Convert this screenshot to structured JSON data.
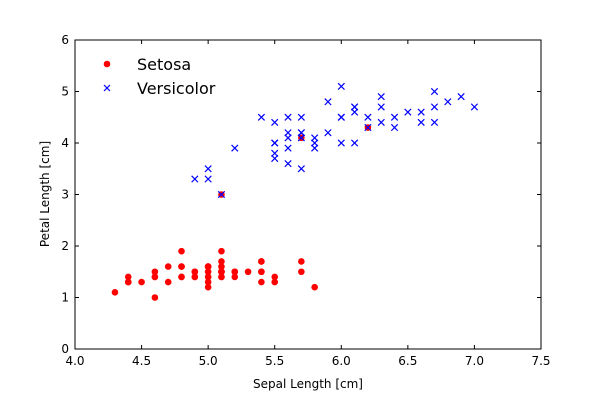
{
  "chart_data": {
    "type": "scatter",
    "title": "",
    "xlabel": "Sepal Length [cm]",
    "ylabel": "Petal Length [cm]",
    "xlim": [
      4.0,
      7.5
    ],
    "ylim": [
      0,
      6
    ],
    "xticks": [
      "4.0",
      "4.5",
      "5.0",
      "5.5",
      "6.0",
      "6.5",
      "7.0",
      "7.5"
    ],
    "yticks": [
      "0",
      "1",
      "2",
      "3",
      "4",
      "5",
      "6"
    ],
    "grid": false,
    "legend_position": "top-left",
    "series": [
      {
        "name": "Setosa",
        "marker": "circle",
        "color": "#ff0000",
        "points": [
          [
            5.1,
            1.4
          ],
          [
            4.9,
            1.4
          ],
          [
            4.7,
            1.3
          ],
          [
            4.6,
            1.5
          ],
          [
            5.0,
            1.4
          ],
          [
            5.4,
            1.7
          ],
          [
            4.6,
            1.4
          ],
          [
            5.0,
            1.5
          ],
          [
            4.4,
            1.4
          ],
          [
            4.9,
            1.5
          ],
          [
            5.4,
            1.5
          ],
          [
            4.8,
            1.6
          ],
          [
            4.8,
            1.4
          ],
          [
            4.3,
            1.1
          ],
          [
            5.8,
            1.2
          ],
          [
            5.7,
            1.5
          ],
          [
            5.4,
            1.3
          ],
          [
            5.1,
            1.4
          ],
          [
            5.7,
            1.7
          ],
          [
            5.1,
            1.5
          ],
          [
            5.4,
            1.7
          ],
          [
            5.1,
            1.5
          ],
          [
            4.6,
            1.0
          ],
          [
            5.1,
            1.7
          ],
          [
            4.8,
            1.9
          ],
          [
            5.0,
            1.6
          ],
          [
            5.0,
            1.6
          ],
          [
            5.2,
            1.5
          ],
          [
            5.2,
            1.4
          ],
          [
            4.7,
            1.6
          ],
          [
            4.8,
            1.6
          ],
          [
            5.4,
            1.5
          ],
          [
            5.2,
            1.5
          ],
          [
            5.5,
            1.4
          ],
          [
            4.9,
            1.5
          ],
          [
            5.0,
            1.2
          ],
          [
            5.5,
            1.3
          ],
          [
            4.9,
            1.4
          ],
          [
            4.4,
            1.3
          ],
          [
            5.1,
            1.5
          ],
          [
            5.0,
            1.3
          ],
          [
            4.5,
            1.3
          ],
          [
            4.4,
            1.3
          ],
          [
            5.0,
            1.6
          ],
          [
            5.1,
            1.9
          ],
          [
            4.8,
            1.4
          ],
          [
            5.1,
            1.6
          ],
          [
            4.6,
            1.4
          ],
          [
            5.3,
            1.5
          ],
          [
            5.0,
            1.4
          ],
          [
            5.1,
            3.0
          ],
          [
            5.7,
            4.1
          ],
          [
            6.2,
            4.3
          ]
        ]
      },
      {
        "name": "Versicolor",
        "marker": "x",
        "color": "#0000ff",
        "points": [
          [
            7.0,
            4.7
          ],
          [
            6.4,
            4.5
          ],
          [
            6.9,
            4.9
          ],
          [
            5.5,
            4.0
          ],
          [
            6.5,
            4.6
          ],
          [
            5.7,
            4.5
          ],
          [
            6.3,
            4.7
          ],
          [
            4.9,
            3.3
          ],
          [
            6.6,
            4.6
          ],
          [
            5.2,
            3.9
          ],
          [
            5.0,
            3.5
          ],
          [
            5.9,
            4.2
          ],
          [
            6.0,
            4.0
          ],
          [
            6.1,
            4.7
          ],
          [
            5.6,
            3.6
          ],
          [
            6.7,
            4.4
          ],
          [
            5.6,
            4.5
          ],
          [
            5.8,
            4.1
          ],
          [
            6.2,
            4.5
          ],
          [
            5.6,
            3.9
          ],
          [
            5.9,
            4.8
          ],
          [
            6.1,
            4.0
          ],
          [
            6.3,
            4.9
          ],
          [
            6.1,
            4.7
          ],
          [
            6.4,
            4.3
          ],
          [
            6.6,
            4.4
          ],
          [
            6.8,
            4.8
          ],
          [
            6.7,
            5.0
          ],
          [
            6.0,
            4.5
          ],
          [
            5.7,
            3.5
          ],
          [
            5.5,
            3.8
          ],
          [
            5.5,
            3.7
          ],
          [
            5.8,
            3.9
          ],
          [
            6.0,
            5.1
          ],
          [
            5.4,
            4.5
          ],
          [
            6.0,
            4.5
          ],
          [
            6.7,
            4.7
          ],
          [
            6.3,
            4.4
          ],
          [
            5.6,
            4.1
          ],
          [
            5.5,
            4.0
          ],
          [
            5.5,
            4.4
          ],
          [
            6.1,
            4.6
          ],
          [
            5.8,
            4.0
          ],
          [
            5.0,
            3.3
          ],
          [
            5.6,
            4.2
          ],
          [
            5.7,
            4.2
          ],
          [
            5.7,
            4.2
          ],
          [
            6.2,
            4.3
          ],
          [
            5.1,
            3.0
          ],
          [
            5.7,
            4.1
          ]
        ]
      }
    ]
  }
}
